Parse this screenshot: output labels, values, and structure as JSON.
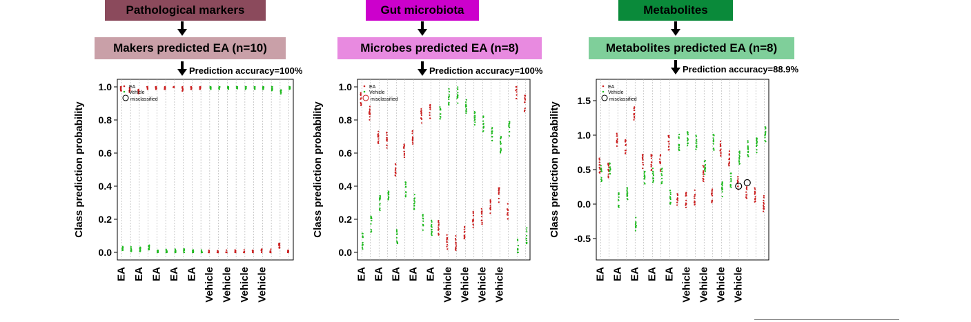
{
  "panels": [
    {
      "header": "Pathological markers",
      "header_color": "#8b4a5c",
      "subheader": "Makers predicted EA (n=10)",
      "subheader_color": "#c9a0a8",
      "accuracy": "Prediction accuracy=100%"
    },
    {
      "header": "Gut microbiota",
      "header_color": "#cc00cc",
      "subheader": "Microbes predicted EA (n=8)",
      "subheader_color": "#e88ae0",
      "accuracy": "Prediction accuracy=100%"
    },
    {
      "header": "Metabolites",
      "header_color": "#0a8a3a",
      "subheader": "Metabolites predicted EA (n=8)",
      "subheader_color": "#7fcf9a",
      "accuracy": "Prediction accuracy=88.9%"
    }
  ],
  "legend": {
    "ea": "EA",
    "vehicle": "Vehicle",
    "misclassified": "misclassified"
  },
  "colors": {
    "ea": "#cc2222",
    "vehicle": "#22bb22",
    "grid": "#aaaaaa"
  },
  "chart_data": [
    {
      "type": "scatter",
      "ylabel": "Class prediction probability",
      "ylim": [
        0,
        1
      ],
      "yticks": [
        "0.0",
        "0.2",
        "0.4",
        "0.6",
        "0.8",
        "1.0"
      ],
      "tick_labels": [
        "EA",
        "EA",
        "EA",
        "EA",
        "EA",
        "Vehicle",
        "Vehicle",
        "Vehicle",
        "Vehicle"
      ],
      "samples_class": [
        "EA",
        "EA",
        "EA",
        "EA",
        "EA",
        "EA",
        "EA",
        "EA",
        "EA",
        "EA",
        "Vehicle",
        "Vehicle",
        "Vehicle",
        "Vehicle",
        "Vehicle",
        "Vehicle",
        "Vehicle",
        "Vehicle",
        "Vehicle",
        "Vehicle"
      ],
      "series": [
        {
          "name": "EA",
          "values": [
            0.99,
            0.98,
            0.97,
            1.0,
            1.0,
            1.0,
            1.0,
            0.99,
            1.0,
            1.0,
            0.0,
            0.0,
            0.0,
            0.0,
            0.005,
            0.005,
            0.005,
            0.005,
            0.04,
            0.0
          ]
        },
        {
          "name": "Vehicle",
          "values": [
            0.02,
            0.02,
            0.02,
            0.03,
            0.005,
            0.005,
            0.005,
            0.01,
            0.0,
            0.0,
            1.0,
            1.0,
            1.0,
            1.0,
            1.0,
            1.0,
            1.0,
            0.99,
            0.97,
            1.0
          ]
        }
      ],
      "misclassified": []
    },
    {
      "type": "scatter",
      "ylabel": "Class prediction probability",
      "ylim": [
        0,
        1
      ],
      "yticks": [
        "0.0",
        "0.2",
        "0.4",
        "0.6",
        "0.8",
        "1.0"
      ],
      "tick_labels": [
        "EA",
        "EA",
        "EA",
        "EA",
        "EA",
        "Vehicle",
        "Vehicle",
        "Vehicle",
        "Vehicle"
      ],
      "samples_class": [
        "EA",
        "EA",
        "EA",
        "EA",
        "EA",
        "EA",
        "EA",
        "EA",
        "EA",
        "EA",
        "Vehicle",
        "Vehicle",
        "Vehicle",
        "Vehicle",
        "Vehicle",
        "Vehicle",
        "Vehicle",
        "Vehicle",
        "Vehicle",
        "Vehicle"
      ],
      "series": [
        {
          "name": "EA",
          "values": [
            0.93,
            0.85,
            0.7,
            0.68,
            0.5,
            0.62,
            0.7,
            0.82,
            0.85,
            0.15,
            0.06,
            0.05,
            0.12,
            0.2,
            0.22,
            0.28,
            0.35,
            0.25,
            0.97,
            0.9
          ]
        },
        {
          "name": "Vehicle",
          "values": [
            0.07,
            0.17,
            0.3,
            0.35,
            0.1,
            0.38,
            0.3,
            0.18,
            0.15,
            0.85,
            0.94,
            0.95,
            0.88,
            0.8,
            0.78,
            0.72,
            0.65,
            0.75,
            0.03,
            0.1
          ]
        }
      ],
      "misclassified": []
    },
    {
      "type": "scatter",
      "ylabel": "Class prediction probability",
      "ylim": [
        -0.8,
        1.8
      ],
      "yticks": [
        "-0.5",
        "0.0",
        "0.5",
        "1.0",
        "1.5"
      ],
      "tick_labels": [
        "EA",
        "EA",
        "EA",
        "EA",
        "EA",
        "Vehicle",
        "Vehicle",
        "Vehicle",
        "Vehicle"
      ],
      "samples_class": [
        "EA",
        "EA",
        "EA",
        "EA",
        "EA",
        "EA",
        "EA",
        "EA",
        "EA",
        "EA",
        "Vehicle",
        "Vehicle",
        "Vehicle",
        "Vehicle",
        "Vehicle",
        "Vehicle",
        "Vehicle",
        "Vehicle",
        "Vehicle",
        "Vehicle"
      ],
      "series": [
        {
          "name": "EA",
          "values": [
            0.55,
            0.5,
            0.95,
            0.85,
            1.3,
            0.6,
            0.6,
            0.6,
            0.9,
            0.1,
            0.05,
            0.1,
            0.45,
            0.1,
            0.8,
            0.65,
            0.3,
            0.2,
            0.15,
            0.0
          ]
        },
        {
          "name": "Vehicle",
          "values": [
            0.45,
            0.5,
            0.05,
            0.15,
            -0.3,
            0.4,
            0.4,
            0.4,
            0.1,
            0.9,
            0.95,
            0.9,
            0.55,
            0.9,
            0.2,
            0.35,
            0.7,
            0.8,
            0.85,
            1.0
          ]
        }
      ],
      "misclassified": [
        {
          "sample": 16,
          "value": 0.26
        },
        {
          "sample": 17,
          "value": 0.31
        }
      ]
    }
  ]
}
